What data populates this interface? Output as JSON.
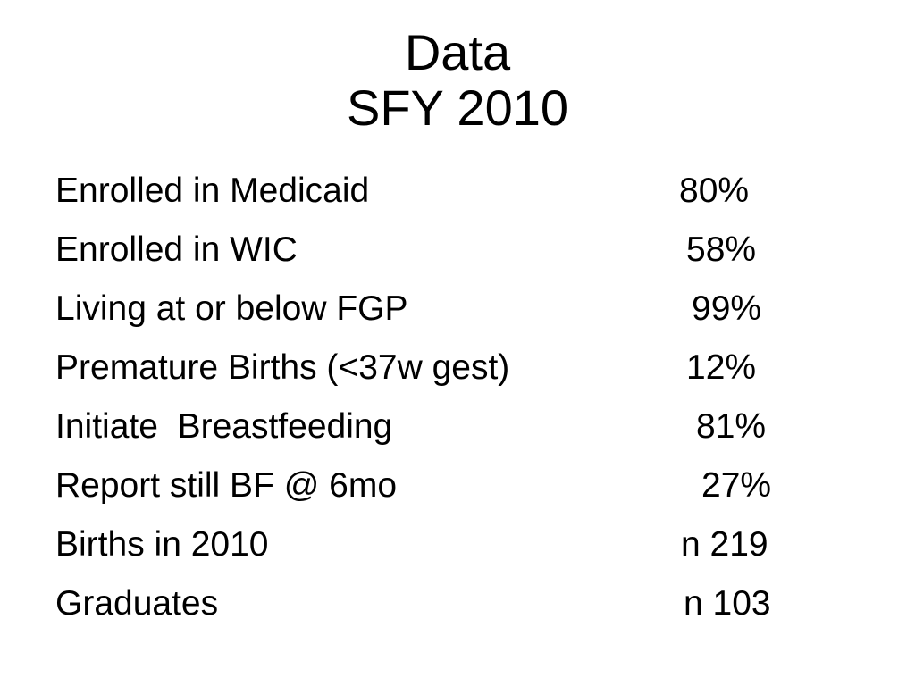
{
  "slide": {
    "title_line1": "Data",
    "title_line2": "SFY 2010",
    "rows": [
      {
        "label": "Enrolled in Medicaid",
        "value": "80%"
      },
      {
        "label": "Enrolled in WIC",
        "value": "58%"
      },
      {
        "label": "Living at or below FGP",
        "value": "99%"
      },
      {
        "label": "Premature Births (<37w gest)",
        "value": "12%"
      },
      {
        "label": "Initiate  Breastfeeding",
        "value": "81%"
      },
      {
        "label": "Report still BF @ 6mo",
        "value": "27%"
      },
      {
        "label": "Births in 2010",
        "value": "n 219"
      },
      {
        "label": "Graduates",
        "value": "n 103"
      }
    ]
  }
}
